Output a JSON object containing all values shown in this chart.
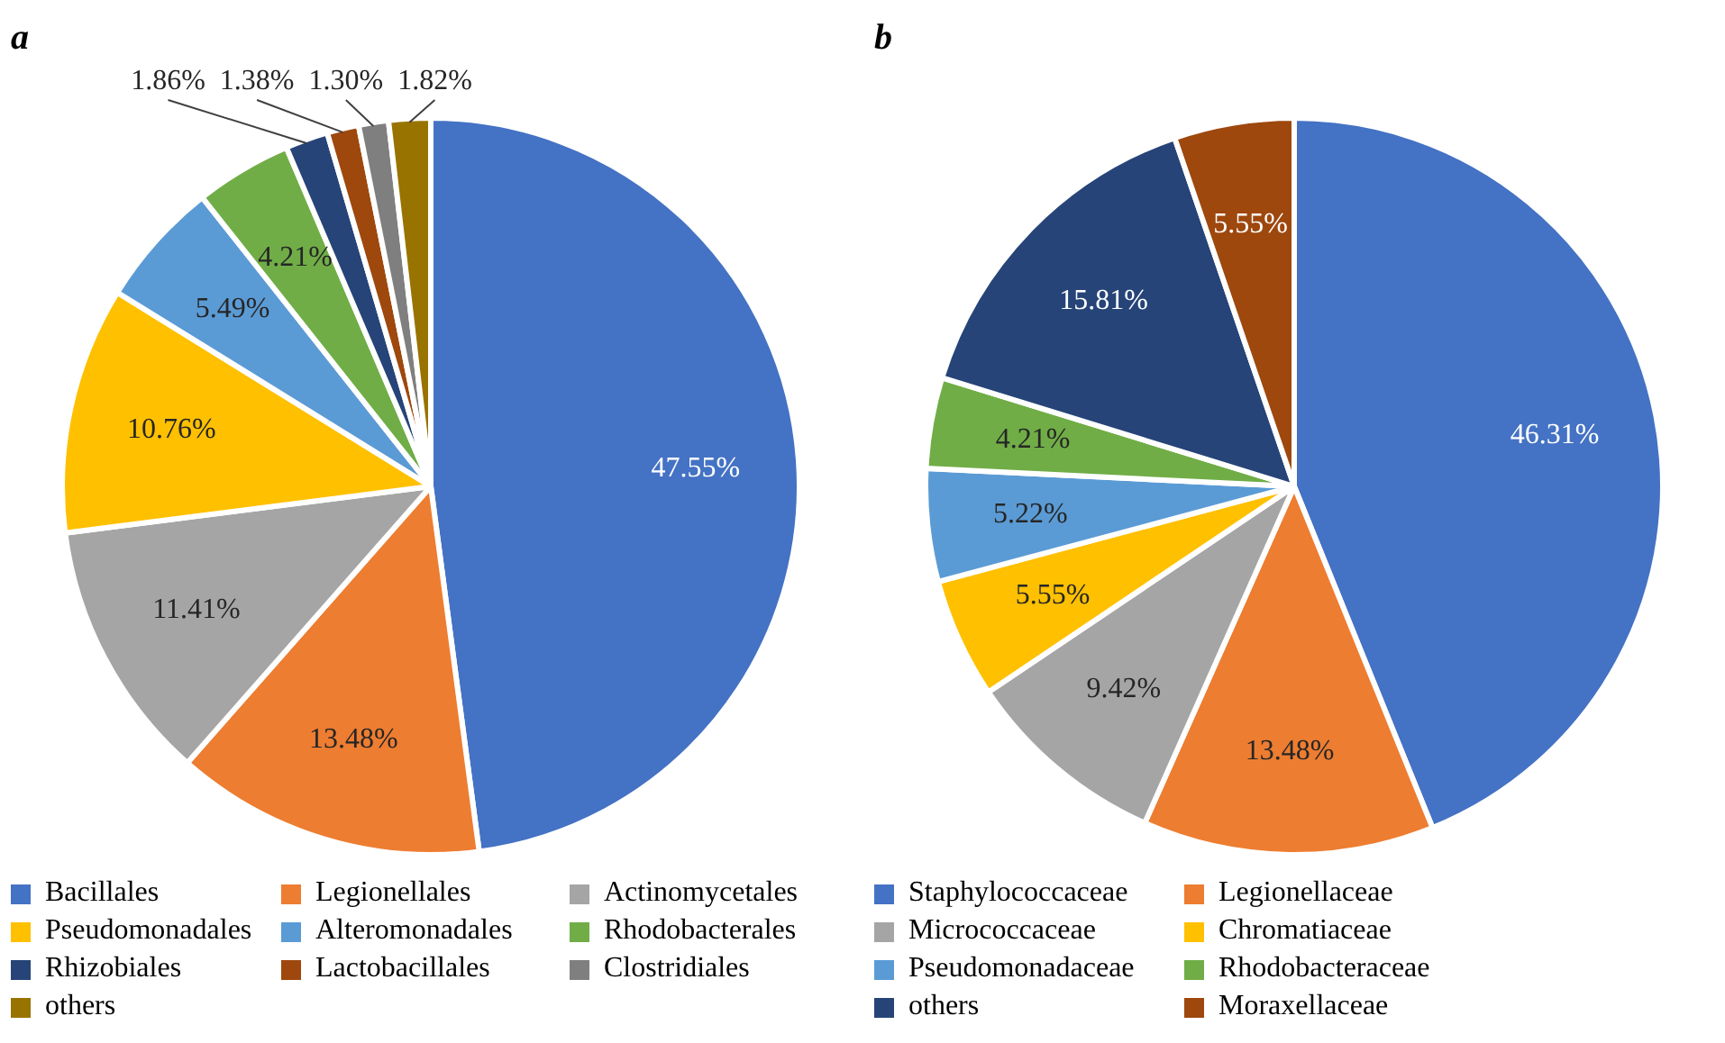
{
  "chart_data": [
    {
      "type": "pie",
      "title": "a",
      "legend": "bottom",
      "categories": [
        "Bacillales",
        "Legionellales",
        "Actinomycetales",
        "Pseudomonadales",
        "Alteromonadales",
        "Rhodobacterales",
        "Rhizobiales",
        "Lactobacillales",
        "Clostridiales",
        "others"
      ],
      "values": [
        47.55,
        13.48,
        11.41,
        10.76,
        5.49,
        4.21,
        1.86,
        1.38,
        1.3,
        1.82
      ],
      "value_labels": [
        "47.55%",
        "13.48%",
        "11.41%",
        "10.76%",
        "5.49%",
        "4.21%",
        "1.86%",
        "1.38%",
        "1.30%",
        "1.82%"
      ],
      "colors": [
        "#4472c4",
        "#ed7d31",
        "#a5a5a5",
        "#ffc000",
        "#5b9bd5",
        "#70ad47",
        "#264478",
        "#9e480e",
        "#7f7f7f",
        "#997300"
      ]
    },
    {
      "type": "pie",
      "title": "b",
      "legend": "bottom",
      "categories": [
        "Staphylococcaceae",
        "Legionellaceae",
        "Micrococcaceae",
        "Chromatiaceae",
        "Pseudomonadaceae",
        "Rhodobacteraceae",
        "others",
        "Moraxellaceae"
      ],
      "values": [
        46.31,
        13.48,
        9.42,
        5.55,
        5.22,
        4.21,
        15.81,
        5.55
      ],
      "value_labels": [
        "46.31%",
        "13.48%",
        "9.42%",
        "5.55%",
        "5.22%",
        "4.21%",
        "15.81%",
        "5.55%"
      ],
      "colors": [
        "#4472c4",
        "#ed7d31",
        "#a5a5a5",
        "#ffc000",
        "#5b9bd5",
        "#70ad47",
        "#264478",
        "#9e480e"
      ]
    }
  ]
}
